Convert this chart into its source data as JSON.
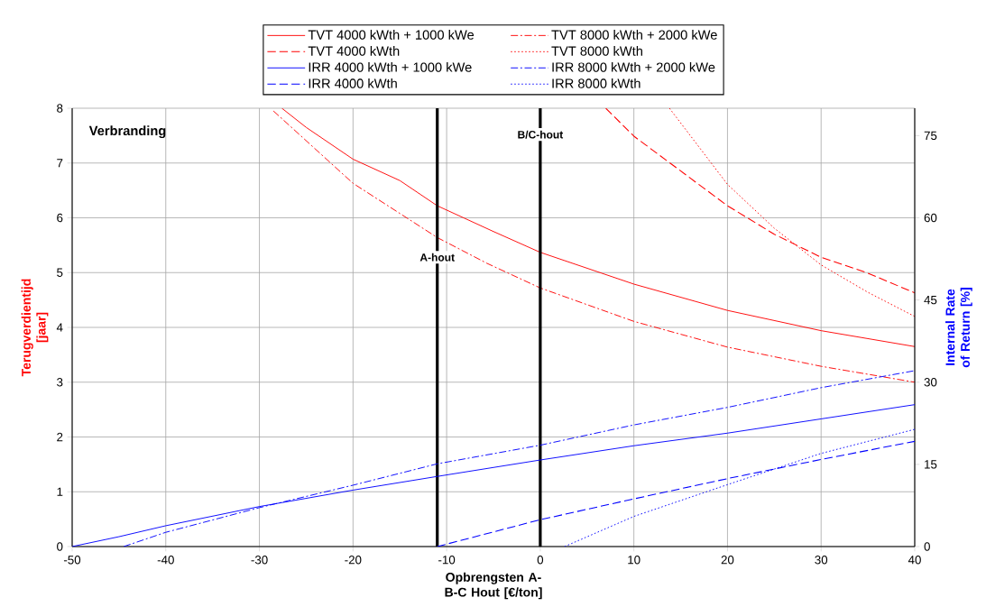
{
  "chart_data": {
    "type": "line",
    "xlabel": "Opbrengsten A-B-C Hout [€/ton]",
    "ylabel": "Terugverdientijd [jaar]",
    "y2label": "Internal Rate of Return [%]",
    "annotations": [
      "Verbranding"
    ],
    "xlim": [
      -50,
      40
    ],
    "xticks": [
      -50,
      -40,
      -30,
      -20,
      -10,
      0,
      10,
      20,
      30,
      40
    ],
    "ylim": [
      0,
      8
    ],
    "yticks": [
      0,
      1,
      2,
      3,
      4,
      5,
      6,
      7,
      8
    ],
    "y2lim": [
      0,
      80
    ],
    "y2ticks": [
      0,
      15,
      30,
      45,
      60,
      75
    ],
    "grid": true,
    "legend": "top",
    "ref_lines": [
      {
        "axis": "x",
        "value": -11,
        "label": "A-hout",
        "color": "#000000"
      },
      {
        "axis": "x",
        "value": 0,
        "label": "B/C-hout",
        "color": "#000000"
      }
    ],
    "series": [
      {
        "name": "TVT 4000 kWth + 1000 kWe",
        "color": "#ff0000",
        "line_style": "solid",
        "x": [
          -27.6,
          -25,
          -20,
          -15,
          -11,
          -5,
          0,
          10,
          20,
          30,
          40
        ],
        "values": [
          8,
          7.65,
          7.07,
          6.68,
          6.22,
          5.75,
          5.37,
          4.79,
          4.31,
          3.94,
          3.65
        ]
      },
      {
        "name": "TVT 8000 kWth + 2000 kWe",
        "color": "#ff0000",
        "line_style": "dashdot",
        "x": [
          -28.5,
          -20,
          -11,
          -5.7,
          0,
          10,
          20,
          30,
          40
        ],
        "values": [
          7.95,
          6.63,
          5.64,
          5.17,
          4.72,
          4.11,
          3.64,
          3.29,
          3.0
        ]
      },
      {
        "name": "TVT 4000 kWth",
        "color": "#ff0000",
        "line_style": "dashed",
        "x": [
          7,
          10,
          20,
          25,
          30,
          35,
          40
        ],
        "values": [
          8,
          7.49,
          6.22,
          5.7,
          5.28,
          4.99,
          4.63
        ]
      },
      {
        "name": "TVT 8000 kWth",
        "color": "#ff0000",
        "line_style": "dotted",
        "x": [
          13.8,
          20,
          25,
          30,
          35,
          40
        ],
        "values": [
          8,
          6.61,
          5.81,
          5.14,
          4.64,
          4.2
        ]
      },
      {
        "name": "IRR 4000 kWth + 1000 kWe",
        "color": "#0000ff",
        "line_style": "solid",
        "axis": "y2",
        "x": [
          -50,
          -45,
          -40,
          -30,
          -20,
          -11,
          0,
          10,
          20,
          30,
          40
        ],
        "values": [
          0,
          1.8,
          3.8,
          7.3,
          10.3,
          12.8,
          15.8,
          18.4,
          20.7,
          23.3,
          25.9
        ]
      },
      {
        "name": "IRR 8000 kWth + 2000 kWe",
        "color": "#0000ff",
        "line_style": "dashdot",
        "axis": "y2",
        "x": [
          -44.5,
          -40,
          -30,
          -20,
          -11,
          0,
          10,
          20,
          30,
          40
        ],
        "values": [
          0,
          2.6,
          7.1,
          11.2,
          15.1,
          18.5,
          22.2,
          25.4,
          29,
          32.1
        ]
      },
      {
        "name": "IRR 4000 kWth",
        "color": "#0000ff",
        "line_style": "dashed",
        "axis": "y2",
        "x": [
          -11,
          0,
          10,
          20,
          30,
          40
        ],
        "values": [
          0,
          4.9,
          8.7,
          12.4,
          15.9,
          19.2
        ]
      },
      {
        "name": "IRR 8000 kWth",
        "color": "#0000ff",
        "line_style": "dotted",
        "axis": "y2",
        "x": [
          2.6,
          10,
          20,
          30,
          40
        ],
        "values": [
          0,
          5.5,
          11.3,
          17,
          21.4
        ]
      }
    ]
  }
}
